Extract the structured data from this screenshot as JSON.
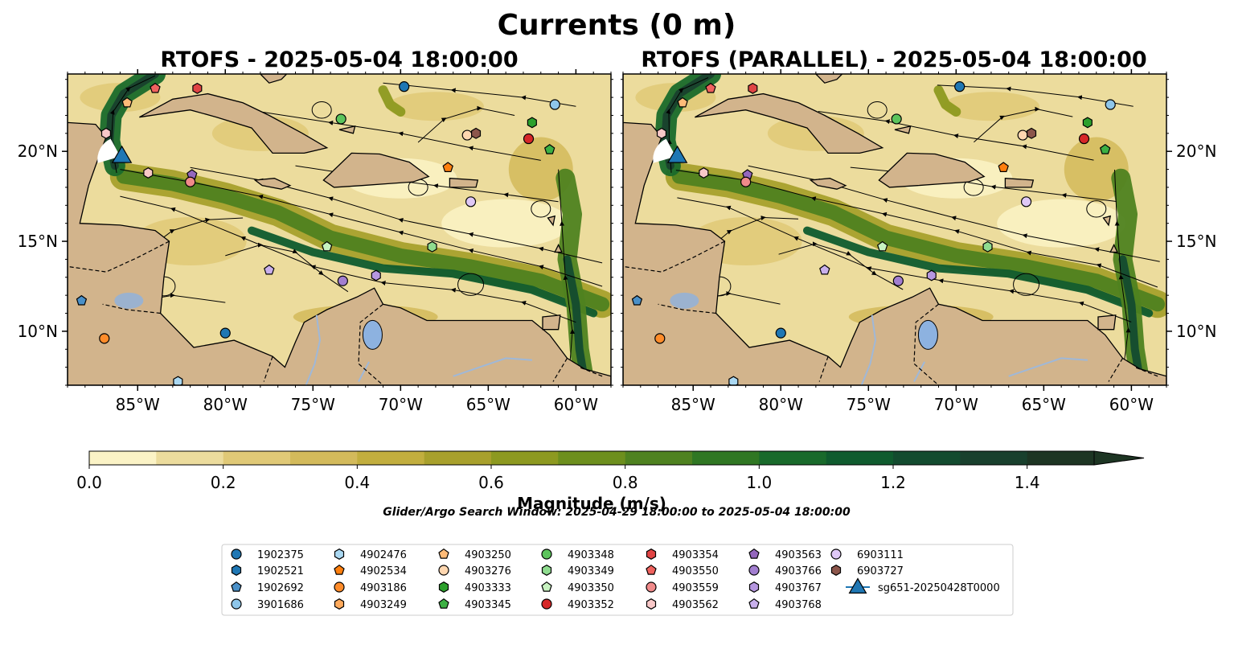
{
  "figure": {
    "suptitle": "Currents (0 m)",
    "search_window": "Glider/Argo Search Window: 2025-04-29 18:00:00 to 2025-05-04 18:00:00"
  },
  "chart_data": [
    {
      "type": "heatmap",
      "title": "RTOFS - 2025-05-04 18:00:00",
      "variable": "Surface current magnitude (m/s) with streamlines",
      "lon_range": [
        -89,
        -58
      ],
      "lat_range": [
        7,
        24.3
      ],
      "x_ticks": [
        "85°W",
        "80°W",
        "75°W",
        "70°W",
        "65°W",
        "60°W"
      ],
      "x_tick_values": [
        -85,
        -80,
        -75,
        -70,
        -65,
        -60
      ],
      "y_ticks": [
        "20°N",
        "15°N",
        "10°N"
      ],
      "y_tick_values": [
        20,
        15,
        10
      ],
      "y_ticks_side": "left"
    },
    {
      "type": "heatmap",
      "title": "RTOFS (PARALLEL) - 2025-05-04 18:00:00",
      "variable": "Surface current magnitude (m/s) with streamlines",
      "lon_range": [
        -89,
        -58
      ],
      "lat_range": [
        7,
        24.3
      ],
      "x_ticks": [
        "85°W",
        "80°W",
        "75°W",
        "70°W",
        "65°W",
        "60°W"
      ],
      "x_tick_values": [
        -85,
        -80,
        -75,
        -70,
        -65,
        -60
      ],
      "y_ticks": [
        "20°N",
        "15°N",
        "10°N"
      ],
      "y_tick_values": [
        20,
        15,
        10
      ],
      "y_ticks_side": "right"
    }
  ],
  "colorbar": {
    "label": "Magnitude (m/s)",
    "range": [
      0,
      1.5
    ],
    "step": 0.1,
    "extend": "max",
    "tick_values": [
      0,
      0.2,
      0.4,
      0.6,
      0.8,
      1.0,
      1.2,
      1.4
    ],
    "tick_labels": [
      "0.0",
      "0.2",
      "0.4",
      "0.6",
      "0.8",
      "1.0",
      "1.2",
      "1.4"
    ],
    "colors": [
      "#fbf3c6",
      "#ecdc9d",
      "#e0c977",
      "#d3ba5b",
      "#c2ae3e",
      "#a8a02c",
      "#8d9920",
      "#6d8f1d",
      "#4f8220",
      "#307723",
      "#196a2b",
      "#0f5b2e",
      "#134b2f",
      "#19402d",
      "#1d3523"
    ]
  },
  "map_colors": {
    "land": "#d2b48c",
    "lake": "#8db2e0",
    "river": "#9fb8d8"
  },
  "legend": {
    "placement": "bottom-center",
    "items": [
      {
        "id": "1902375",
        "marker": "circle",
        "color": "#1f77b4"
      },
      {
        "id": "1902521",
        "marker": "hexagon",
        "color": "#1f77b4"
      },
      {
        "id": "1902692",
        "marker": "pentagon",
        "color": "#4a90c8"
      },
      {
        "id": "3901686",
        "marker": "circle",
        "color": "#8ec6ea"
      },
      {
        "id": "4902476",
        "marker": "hexagon",
        "color": "#aad8f2"
      },
      {
        "id": "4902534",
        "marker": "pentagon",
        "color": "#ff7f0e"
      },
      {
        "id": "4903186",
        "marker": "circle",
        "color": "#ff8c2a"
      },
      {
        "id": "4903249",
        "marker": "hexagon",
        "color": "#ffaa5c"
      },
      {
        "id": "4903250",
        "marker": "pentagon",
        "color": "#ffbb78"
      },
      {
        "id": "4903276",
        "marker": "circle",
        "color": "#ffd7b0"
      },
      {
        "id": "4903333",
        "marker": "hexagon",
        "color": "#2ca02c"
      },
      {
        "id": "4903345",
        "marker": "pentagon",
        "color": "#3cb043"
      },
      {
        "id": "4903348",
        "marker": "circle",
        "color": "#5cc45c"
      },
      {
        "id": "4903349",
        "marker": "hexagon",
        "color": "#8fdc8f"
      },
      {
        "id": "4903350",
        "marker": "pentagon",
        "color": "#c7f2c0"
      },
      {
        "id": "4903352",
        "marker": "circle",
        "color": "#d62728"
      },
      {
        "id": "4903354",
        "marker": "hexagon",
        "color": "#e04444"
      },
      {
        "id": "4903550",
        "marker": "pentagon",
        "color": "#f0625e"
      },
      {
        "id": "4903559",
        "marker": "circle",
        "color": "#f08a8a"
      },
      {
        "id": "4903562",
        "marker": "hexagon",
        "color": "#f8c8c8"
      },
      {
        "id": "4903563",
        "marker": "pentagon",
        "color": "#9467bd"
      },
      {
        "id": "4903766",
        "marker": "circle",
        "color": "#a27ed0"
      },
      {
        "id": "4903767",
        "marker": "hexagon",
        "color": "#b697e0"
      },
      {
        "id": "4903768",
        "marker": "pentagon",
        "color": "#c9b0ec"
      },
      {
        "id": "6903111",
        "marker": "circle",
        "color": "#dfc8f6"
      },
      {
        "id": "6903727",
        "marker": "hexagon",
        "color": "#8c564b"
      },
      {
        "id": "sg651-20250428T0000",
        "marker": "triangle",
        "color": "#1f77b4"
      }
    ]
  },
  "float_positions": [
    {
      "id": "1902375",
      "lon": -69.8,
      "lat": 23.6
    },
    {
      "id": "3901686",
      "lon": -61.2,
      "lat": 22.6
    },
    {
      "id": "4903250",
      "lon": -85.6,
      "lat": 22.7
    },
    {
      "id": "4903550",
      "lon": -84.0,
      "lat": 23.5
    },
    {
      "id": "4903354",
      "lon": -81.6,
      "lat": 23.5
    },
    {
      "id": "4903348",
      "lon": -73.4,
      "lat": 21.8
    },
    {
      "id": "4903562",
      "lon": -86.8,
      "lat": 21.0
    },
    {
      "id": "4903276",
      "lon": -66.2,
      "lat": 20.9
    },
    {
      "id": "6903727",
      "lon": -65.7,
      "lat": 21.0
    },
    {
      "id": "4903333",
      "lon": -62.5,
      "lat": 21.6
    },
    {
      "id": "4903352",
      "lon": -62.7,
      "lat": 20.7
    },
    {
      "id": "4903345",
      "lon": -61.5,
      "lat": 20.1
    },
    {
      "id": "4902534",
      "lon": -67.3,
      "lat": 19.1
    },
    {
      "id": "4903562",
      "lon": -84.4,
      "lat": 18.8
    },
    {
      "id": "4903563",
      "lon": -81.9,
      "lat": 18.7
    },
    {
      "id": "4903559",
      "lon": -82.0,
      "lat": 18.3
    },
    {
      "id": "6903111",
      "lon": -66.0,
      "lat": 17.2
    },
    {
      "id": "4903349",
      "lon": -68.2,
      "lat": 14.7
    },
    {
      "id": "4903350",
      "lon": -74.2,
      "lat": 14.7
    },
    {
      "id": "4903768",
      "lon": -77.5,
      "lat": 13.4
    },
    {
      "id": "4903766",
      "lon": -73.3,
      "lat": 12.8
    },
    {
      "id": "4903767",
      "lon": -71.4,
      "lat": 13.1
    },
    {
      "id": "1902692",
      "lon": -88.2,
      "lat": 11.7
    },
    {
      "id": "1902375",
      "lon": -80.0,
      "lat": 9.9
    },
    {
      "id": "4903186",
      "lon": -86.9,
      "lat": 9.6
    },
    {
      "id": "4902476",
      "lon": -82.7,
      "lat": 7.2
    }
  ],
  "glider": {
    "id": "sg651-20250428T0000",
    "lon": -85.9,
    "lat": 19.8
  }
}
